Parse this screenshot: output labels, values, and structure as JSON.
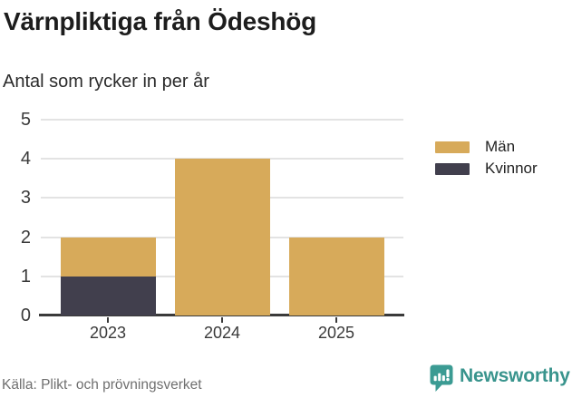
{
  "header": {
    "title": "Värnpliktiga från Ödeshög",
    "subtitle": "Antal som rycker in per år"
  },
  "chart_data": {
    "type": "bar",
    "stacked": true,
    "title": "Värnpliktiga från Ödeshög",
    "subtitle": "Antal som rycker in per år",
    "categories": [
      "2023",
      "2024",
      "2025"
    ],
    "series": [
      {
        "name": "Män",
        "color": "#d7aa5a",
        "values": [
          1,
          4,
          2
        ]
      },
      {
        "name": "Kvinnor",
        "color": "#413f4d",
        "values": [
          1,
          0,
          0
        ]
      }
    ],
    "stack_totals": [
      2,
      4,
      2
    ],
    "xlabel": "",
    "ylabel": "",
    "ylim": [
      0,
      5
    ],
    "yticks": [
      0,
      1,
      2,
      3,
      4,
      5
    ],
    "grid": true,
    "legend_position": "right"
  },
  "footer": {
    "source": "Källa: Plikt- och prövningsverket",
    "brand": "Newsworthy"
  },
  "icons": {
    "brand_logo": "newsworthy-speech-bubble-bar-chart-icon"
  },
  "colors": {
    "men": "#d7aa5a",
    "women": "#413f4d",
    "brand_teal": "#3b9b93",
    "grid": "#e3e3e3",
    "axis": "#3a3a3a",
    "source_text": "#6f6f6f"
  }
}
